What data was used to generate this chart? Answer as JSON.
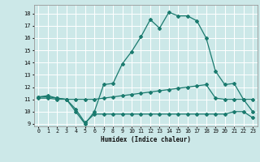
{
  "xlabel": "Humidex (Indice chaleur)",
  "xlim": [
    -0.5,
    23.5
  ],
  "ylim": [
    8.8,
    18.7
  ],
  "yticks": [
    9,
    10,
    11,
    12,
    13,
    14,
    15,
    16,
    17,
    18
  ],
  "xticks": [
    0,
    1,
    2,
    3,
    4,
    5,
    6,
    7,
    8,
    9,
    10,
    11,
    12,
    13,
    14,
    15,
    16,
    17,
    18,
    19,
    20,
    21,
    22,
    23
  ],
  "bg_color": "#cce8e8",
  "grid_color": "#ffffff",
  "line_color": "#1a7a6e",
  "line1_x": [
    0,
    1,
    2,
    3,
    4,
    5,
    6,
    7,
    8,
    9,
    10,
    11,
    12,
    13,
    14,
    15,
    16,
    17,
    18,
    19,
    20,
    21,
    22,
    23
  ],
  "line1_y": [
    11.2,
    11.3,
    11.1,
    11.0,
    10.0,
    9.0,
    10.0,
    12.2,
    12.3,
    13.9,
    14.9,
    16.1,
    17.5,
    16.8,
    18.1,
    17.8,
    17.8,
    17.4,
    16.0,
    13.3,
    12.2,
    12.3,
    11.0,
    10.0
  ],
  "line2_x": [
    0,
    1,
    2,
    3,
    4,
    5,
    6,
    7,
    8,
    9,
    10,
    11,
    12,
    13,
    14,
    15,
    16,
    17,
    18,
    19,
    20,
    21,
    22,
    23
  ],
  "line2_y": [
    11.2,
    11.2,
    11.1,
    11.0,
    11.0,
    11.0,
    11.0,
    11.1,
    11.2,
    11.3,
    11.4,
    11.5,
    11.6,
    11.7,
    11.8,
    11.9,
    12.0,
    12.1,
    12.2,
    11.1,
    11.0,
    11.0,
    11.0,
    11.0
  ],
  "line3_x": [
    0,
    1,
    2,
    3,
    4,
    5,
    6,
    7,
    8,
    9,
    10,
    11,
    12,
    13,
    14,
    15,
    16,
    17,
    18,
    19,
    20,
    21,
    22,
    23
  ],
  "line3_y": [
    11.1,
    11.1,
    11.0,
    11.0,
    10.2,
    9.1,
    9.8,
    9.8,
    9.8,
    9.8,
    9.8,
    9.8,
    9.8,
    9.8,
    9.8,
    9.8,
    9.8,
    9.8,
    9.8,
    9.8,
    9.8,
    10.0,
    10.0,
    9.5
  ]
}
